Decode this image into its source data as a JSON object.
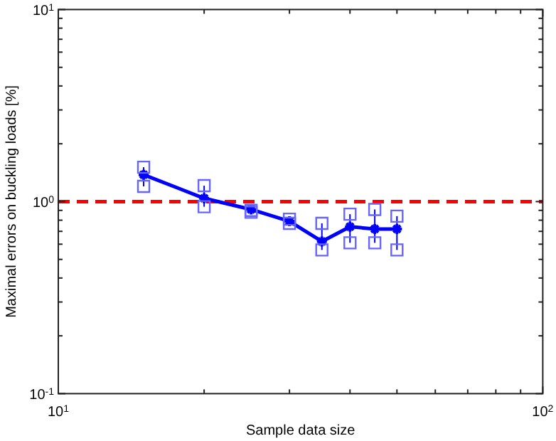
{
  "chart_data": {
    "type": "line",
    "xlabel": "Sample data size",
    "ylabel": "Maximal errors on buckling loads [%]",
    "log": "xy",
    "xlim": [
      10,
      100
    ],
    "ylim": [
      0.1,
      10
    ],
    "xticks": [
      {
        "value": 10,
        "label": "10$^{1}$"
      },
      {
        "value": 20,
        "label": null
      },
      {
        "value": 30,
        "label": null
      },
      {
        "value": 40,
        "label": null
      },
      {
        "value": 50,
        "label": null
      },
      {
        "value": 60,
        "label": null
      },
      {
        "value": 70,
        "label": null
      },
      {
        "value": 80,
        "label": null
      },
      {
        "value": 90,
        "label": null
      },
      {
        "value": 100,
        "label": "10$^{2}$"
      }
    ],
    "yticks": [
      {
        "value": 0.1,
        "label": "10$^{-1}$"
      },
      {
        "value": 0.2,
        "label": null
      },
      {
        "value": 0.3,
        "label": null
      },
      {
        "value": 0.4,
        "label": null
      },
      {
        "value": 0.5,
        "label": null
      },
      {
        "value": 0.6,
        "label": null
      },
      {
        "value": 0.7,
        "label": null
      },
      {
        "value": 0.8,
        "label": null
      },
      {
        "value": 0.9,
        "label": null
      },
      {
        "value": 1,
        "label": "10$^{0}$"
      },
      {
        "value": 2,
        "label": null
      },
      {
        "value": 3,
        "label": null
      },
      {
        "value": 4,
        "label": null
      },
      {
        "value": 5,
        "label": null
      },
      {
        "value": 6,
        "label": null
      },
      {
        "value": 7,
        "label": null
      },
      {
        "value": 8,
        "label": null
      },
      {
        "value": 9,
        "label": null
      },
      {
        "value": 10,
        "label": "10$^{1}$"
      }
    ],
    "x": [
      15,
      20,
      25,
      30,
      35,
      40,
      45,
      50
    ],
    "series": [
      {
        "color": "#0000ff",
        "values": [
          1.38,
          1.04,
          0.91,
          0.79,
          0.62,
          0.74,
          0.72,
          0.72
        ],
        "errors": [
          [
            1.2,
            1.51
          ],
          [
            0.94,
            1.21
          ],
          [
            0.88,
            0.9
          ],
          [
            0.77,
            0.81
          ],
          [
            0.56,
            0.77
          ],
          [
            0.61,
            0.86
          ],
          [
            0.61,
            0.91
          ],
          [
            0.56,
            0.84
          ]
        ]
      },
      {
        "type": "scatter",
        "marker": "square",
        "color": "#6666ff",
        "x": [
          15,
          15,
          20,
          20,
          25,
          25,
          30,
          30,
          35,
          35,
          40,
          40,
          45,
          45,
          50,
          50
        ],
        "values": [
          1.2,
          1.51,
          0.94,
          1.21,
          0.88,
          0.9,
          0.77,
          0.81,
          0.56,
          0.77,
          0.61,
          0.86,
          0.61,
          0.91,
          0.56,
          0.84
        ]
      }
    ],
    "marker": "cross",
    "line_style": "solid",
    "grid": false,
    "ref_lines": [
      {
        "axis": "y",
        "value": 1,
        "color": "#ff0000",
        "line_style": "dashed"
      }
    ]
  }
}
